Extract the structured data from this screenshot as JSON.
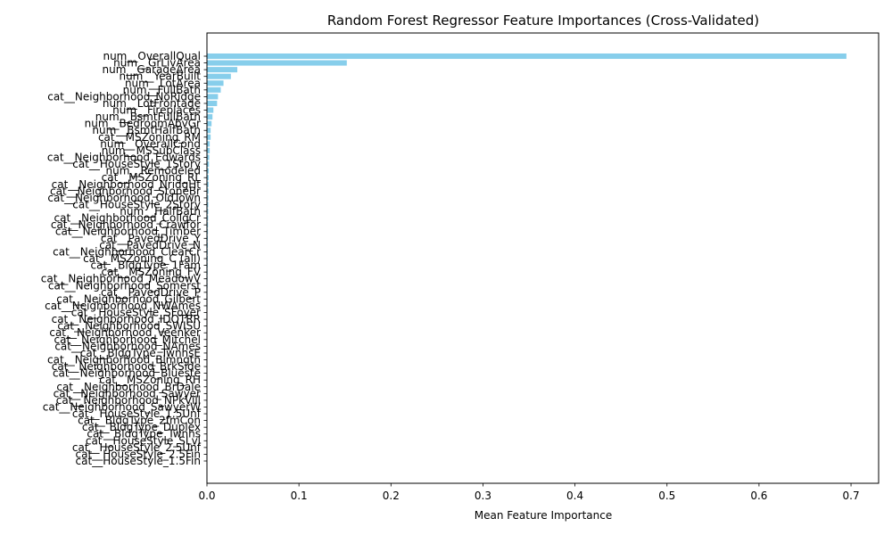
{
  "chart_data": {
    "type": "bar",
    "orientation": "horizontal",
    "title": "Random Forest Regressor Feature Importances (Cross-Validated)",
    "xlabel": "Mean Feature Importance",
    "ylabel": "",
    "xlim": [
      0,
      0.73
    ],
    "xticks": [
      0.0,
      0.1,
      0.2,
      0.3,
      0.4,
      0.5,
      0.6,
      0.7
    ],
    "xtick_labels": [
      "0.0",
      "0.1",
      "0.2",
      "0.3",
      "0.4",
      "0.5",
      "0.6",
      "0.7"
    ],
    "grid": false,
    "bar_color": "#87ceeb",
    "categories": [
      "num__OverallQual",
      "num__GrLivArea",
      "num__GarageArea",
      "num__YearBuilt",
      "num__LotArea",
      "num__FullBath",
      "cat__Neighborhood_NoRidge",
      "num__LotFrontage",
      "num__Fireplaces",
      "num__BsmtFullBath",
      "num__BedroomAbvGr",
      "num__BsmtHalfBath",
      "cat__MSZoning_RM",
      "num__OverallCond",
      "num__MSSubClass",
      "cat__Neighborhood_Edwards",
      "cat__HouseStyle_1Story",
      "num__Remodeled",
      "cat__MSZoning_RL",
      "cat__Neighborhood_NridgHt",
      "cat__Neighborhood_StoneBr",
      "cat__Neighborhood_OldTown",
      "cat__HouseStyle_2Story",
      "num__HalfBath",
      "cat__Neighborhood_CollgCr",
      "cat__Neighborhood_Crawfor",
      "cat__Neighborhood_Timber",
      "cat__PavedDrive_Y",
      "cat__PavedDrive_N",
      "cat__Neighborhood_ClearCr",
      "cat__MSZoning_C (all)",
      "cat__BldgType_1Fam",
      "cat__MSZoning_FV",
      "cat__Neighborhood_MeadowV",
      "cat__Neighborhood_Somerst",
      "cat__PavedDrive_P",
      "cat__Neighborhood_Gilbert",
      "cat__Neighborhood_NWAmes",
      "cat__HouseStyle_SFoyer",
      "cat__Neighborhood_IDOTRR",
      "cat__Neighborhood_SWISU",
      "cat__Neighborhood_Veenker",
      "cat__Neighborhood_Mitchel",
      "cat__Neighborhood_NAmes",
      "cat__BldgType_TwnhsE",
      "cat__Neighborhood_Blmngtn",
      "cat__Neighborhood_BrkSide",
      "cat__Neighborhood_Blueste",
      "cat__MSZoning_RH",
      "cat__Neighborhood_BrDale",
      "cat__Neighborhood_Sawyer",
      "cat__Neighborhood_NPkVill",
      "cat__Neighborhood_SawyerW",
      "cat__HouseStyle_1.5Unf",
      "cat__BldgType_2fmCon",
      "cat__BldgType_Duplex",
      "cat__BldgType_Twnhs",
      "cat__HouseStyle_SLvl",
      "cat__HouseStyle_2.5Unf",
      "cat__HouseStyle_2.5Fin",
      "cat__HouseStyle_1.5Fin"
    ],
    "values": [
      0.695,
      0.152,
      0.033,
      0.026,
      0.018,
      0.015,
      0.012,
      0.011,
      0.007,
      0.006,
      0.005,
      0.004,
      0.004,
      0.003,
      0.003,
      0.0025,
      0.0022,
      0.002,
      0.0019,
      0.0018,
      0.0017,
      0.0016,
      0.0015,
      0.0014,
      0.0013,
      0.0012,
      0.0011,
      0.001,
      0.001,
      0.0009,
      0.0009,
      0.0008,
      0.0008,
      0.0007,
      0.0007,
      0.0006,
      0.0006,
      0.0006,
      0.0005,
      0.0005,
      0.0005,
      0.0004,
      0.0004,
      0.0004,
      0.0004,
      0.0003,
      0.0003,
      0.0003,
      0.0003,
      0.0002,
      0.0002,
      0.0002,
      0.0002,
      0.0002,
      0.0001,
      0.0001,
      0.0001,
      0.0001,
      5e-05,
      5e-05,
      3e-05
    ]
  }
}
